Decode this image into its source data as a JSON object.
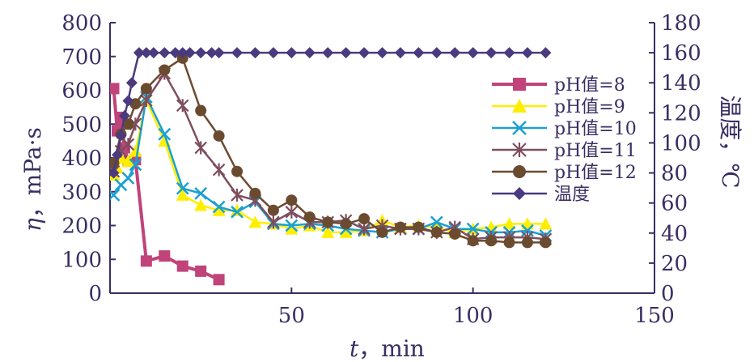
{
  "chart_data": {
    "type": "line",
    "xlabel_var": "t",
    "xlabel_unit": "，min",
    "ylabel_left_var": "η",
    "ylabel_left_unit": "，mPa·s",
    "ylabel_right": "温度，℃",
    "xlim": [
      0,
      150
    ],
    "ylim_left": [
      0,
      800
    ],
    "ylim_right": [
      0,
      180
    ],
    "xticks": [
      "50",
      "100",
      "150"
    ],
    "yticks_left": [
      "0",
      "100",
      "200",
      "300",
      "400",
      "500",
      "600",
      "700",
      "800"
    ],
    "yticks_right": [
      "0",
      "20",
      "40",
      "60",
      "80",
      "100",
      "120",
      "140",
      "160",
      "180"
    ],
    "grid": false,
    "legend_position": "right",
    "series": [
      {
        "name": "pH值=8",
        "axis": "left",
        "color": "#c0437a",
        "marker": "square",
        "x": [
          1,
          2,
          3,
          4,
          5,
          7,
          10,
          15,
          20,
          25,
          30
        ],
        "y": [
          605,
          480,
          520,
          430,
          390,
          395,
          95,
          110,
          80,
          65,
          40
        ]
      },
      {
        "name": "pH值=9",
        "axis": "left",
        "color": "#ffee00",
        "marker": "triangle",
        "x": [
          1,
          2,
          3,
          5,
          7,
          10,
          15,
          20,
          25,
          30,
          35,
          40,
          45,
          50,
          55,
          60,
          65,
          70,
          75,
          80,
          85,
          90,
          95,
          100,
          105,
          110,
          115,
          120
        ],
        "y": [
          350,
          370,
          400,
          390,
          420,
          570,
          450,
          290,
          260,
          245,
          245,
          210,
          205,
          190,
          200,
          180,
          180,
          185,
          215,
          195,
          200,
          195,
          180,
          190,
          195,
          205,
          205,
          205
        ]
      },
      {
        "name": "pH值=10",
        "axis": "left",
        "color": "#1ba0d2",
        "marker": "cross",
        "x": [
          1,
          3,
          5,
          7,
          10,
          15,
          20,
          25,
          30,
          35,
          40,
          45,
          50,
          55,
          60,
          65,
          70,
          75,
          80,
          85,
          90,
          95,
          100,
          105,
          110,
          115,
          120
        ],
        "y": [
          290,
          320,
          340,
          380,
          580,
          470,
          310,
          295,
          255,
          240,
          270,
          205,
          200,
          205,
          200,
          190,
          185,
          180,
          190,
          190,
          210,
          190,
          190,
          180,
          180,
          185,
          170
        ]
      },
      {
        "name": "pH值=11",
        "axis": "left",
        "color": "#7e4e5e",
        "marker": "asterisk",
        "x": [
          1,
          3,
          5,
          7,
          10,
          15,
          20,
          25,
          30,
          35,
          40,
          45,
          50,
          55,
          60,
          65,
          70,
          75,
          80,
          85,
          90,
          95,
          100,
          105,
          110,
          115,
          120
        ],
        "y": [
          360,
          420,
          440,
          500,
          570,
          650,
          555,
          430,
          365,
          290,
          275,
          210,
          240,
          210,
          210,
          215,
          190,
          200,
          190,
          190,
          180,
          195,
          160,
          165,
          165,
          165,
          160
        ]
      },
      {
        "name": "pH值=12",
        "axis": "left",
        "color": "#6b4b30",
        "marker": "circle",
        "x": [
          1,
          3,
          5,
          7,
          10,
          15,
          20,
          25,
          30,
          35,
          40,
          45,
          50,
          55,
          60,
          65,
          70,
          75,
          80,
          85,
          90,
          95,
          100,
          105,
          110,
          115,
          120
        ],
        "y": [
          385,
          470,
          500,
          560,
          605,
          660,
          695,
          540,
          465,
          360,
          295,
          245,
          275,
          225,
          210,
          205,
          220,
          180,
          195,
          195,
          180,
          175,
          155,
          155,
          150,
          150,
          150
        ]
      },
      {
        "name": "温度",
        "axis": "right",
        "color": "#4a3a7e",
        "marker": "diamond",
        "x": [
          1,
          2,
          3,
          4,
          5,
          6,
          8,
          10,
          12,
          15,
          18,
          20,
          22,
          25,
          28,
          30,
          35,
          40,
          45,
          50,
          55,
          60,
          65,
          70,
          75,
          80,
          85,
          90,
          95,
          100,
          105,
          110,
          115,
          120
        ],
        "y": [
          80,
          92,
          105,
          118,
          128,
          140,
          160,
          160,
          160,
          160,
          160,
          160,
          160,
          160,
          160,
          160,
          160,
          160,
          160,
          160,
          160,
          160,
          160,
          160,
          160,
          160,
          160,
          160,
          160,
          160,
          160,
          160,
          160,
          160
        ]
      }
    ]
  }
}
